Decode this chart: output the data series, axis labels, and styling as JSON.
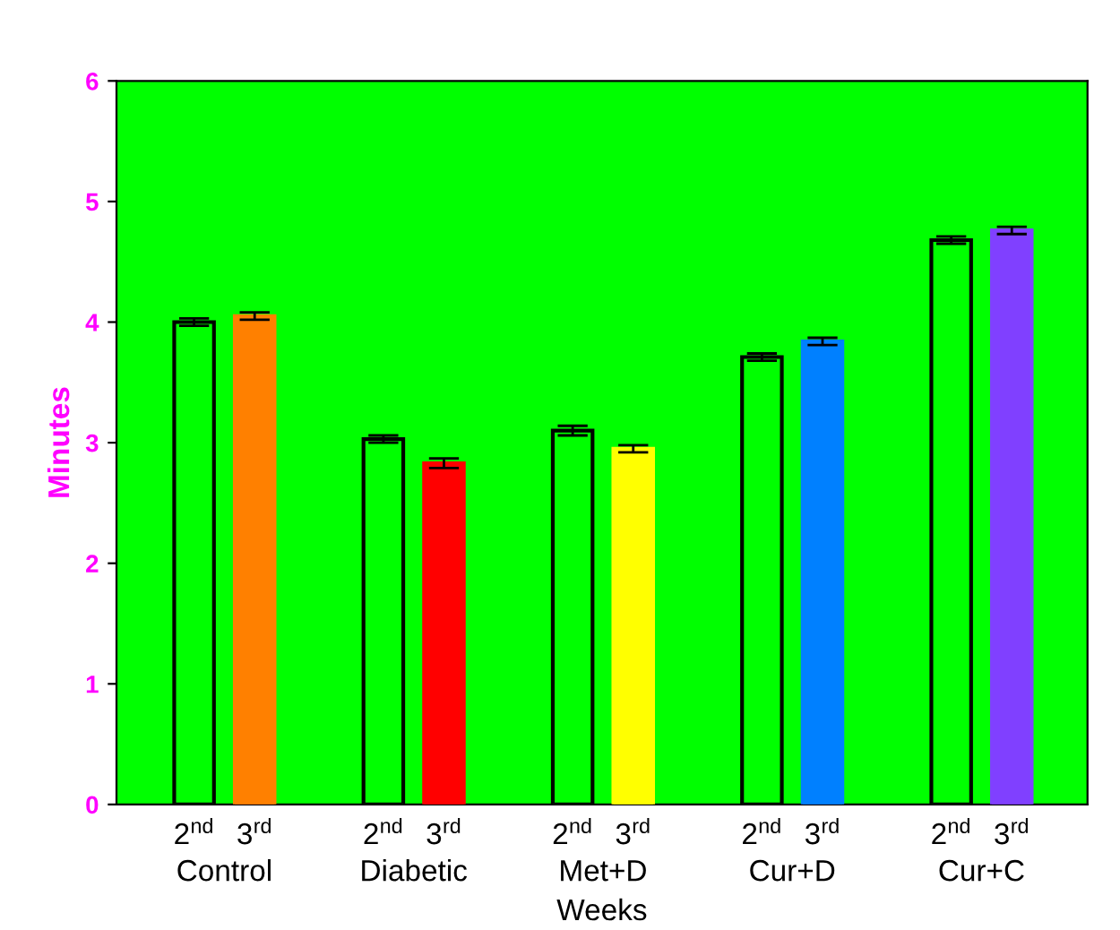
{
  "chart_data": {
    "type": "bar",
    "xlabel": "Weeks",
    "ylabel": "Minutes",
    "categories": [
      "Control",
      "Diabetic",
      "Met+D",
      "Cur+D",
      "Cur+C"
    ],
    "series": [
      {
        "name": "2$^{nd}$",
        "color": "#00ff00",
        "values": [
          4.0,
          3.03,
          3.1,
          3.71,
          4.68
        ],
        "errors": [
          0.03,
          0.03,
          0.04,
          0.03,
          0.03
        ]
      },
      {
        "name": "3$^{rd}$",
        "colors": [
          "#ff8000",
          "#ff0000",
          "#ffff00",
          "#0080ff",
          "#8040ff"
        ],
        "values": [
          4.05,
          2.83,
          2.95,
          3.84,
          4.76
        ],
        "errors": [
          0.03,
          0.04,
          0.03,
          0.03,
          0.03
        ]
      }
    ],
    "ylim": [
      0,
      6
    ],
    "yticks": [
      0,
      1,
      2,
      3,
      4,
      5,
      6
    ],
    "grid": false,
    "legend": false
  }
}
